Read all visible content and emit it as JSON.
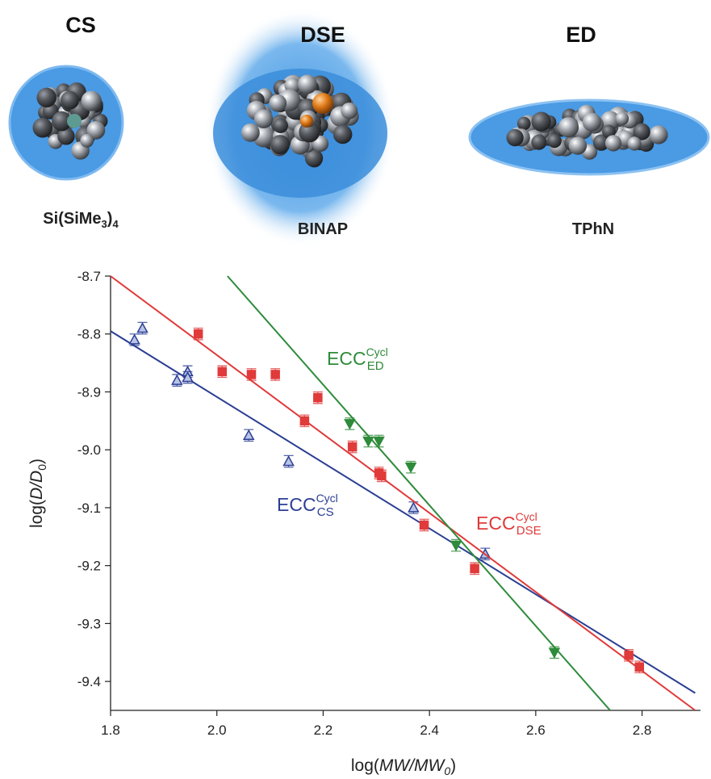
{
  "molecules": [
    {
      "title": "CS",
      "name_parts": [
        "Si(SiMe",
        "3",
        ")",
        "4"
      ]
    },
    {
      "title": "DSE",
      "name_parts": [
        "BINAP"
      ]
    },
    {
      "title": "ED",
      "name_parts": [
        "TPhN"
      ]
    }
  ],
  "chart_data": {
    "type": "scatter",
    "xlabel_parts": [
      "log(",
      "MW/MW",
      "0",
      ")"
    ],
    "ylabel_parts": [
      "log(",
      "D/D",
      "0",
      ")"
    ],
    "xlim": [
      1.8,
      2.91
    ],
    "ylim": [
      -9.45,
      -8.7
    ],
    "xticks": [
      1.8,
      {
        "value": 2,
        "label": "2.0"
      },
      2.2,
      2.4,
      2.6,
      2.8
    ],
    "yticks": [
      -8.7,
      -8.8,
      -8.9,
      {
        "value": -9,
        "label": "-9.0"
      },
      -9.1,
      -9.2,
      -9.3,
      -9.4
    ],
    "series": [
      {
        "name_parts": [
          "ECC",
          "Cycl",
          "CS"
        ],
        "color": "#2b3f93",
        "marker": "triangle-open",
        "x": [
          1.845,
          1.86,
          1.925,
          1.945,
          1.945,
          2.06,
          2.135,
          2.37,
          2.505
        ],
        "values": [
          -8.81,
          -8.79,
          -8.88,
          -8.865,
          -8.875,
          -8.975,
          -9.02,
          -9.1,
          -9.18
        ],
        "errors": [
          0.01,
          0.01,
          0.01,
          0.01,
          0.01,
          0.01,
          0.01,
          0.01,
          0.01
        ],
        "fit_x": [
          1.8,
          2.9
        ],
        "fit_y": [
          -8.795,
          -9.42
        ]
      },
      {
        "name_parts": [
          "ECC",
          "Cycl",
          "DSE"
        ],
        "color": "#e03a3a",
        "marker": "square",
        "x": [
          1.965,
          2.01,
          2.065,
          2.11,
          2.165,
          2.19,
          2.255,
          2.305,
          2.31,
          2.39,
          2.485,
          2.775,
          2.795
        ],
        "values": [
          -8.8,
          -8.865,
          -8.87,
          -8.87,
          -8.95,
          -8.91,
          -8.995,
          -9.04,
          -9.045,
          -9.13,
          -9.205,
          -9.355,
          -9.375
        ],
        "errors": [
          0.01,
          0.01,
          0.01,
          0.01,
          0.01,
          0.01,
          0.01,
          0.01,
          0.01,
          0.01,
          0.01,
          0.01,
          0.01
        ],
        "fit_x": [
          1.8,
          2.9
        ],
        "fit_y": [
          -8.7,
          -9.45
        ]
      },
      {
        "name_parts": [
          "ECC",
          "Cycl",
          "ED"
        ],
        "color": "#2e8b3a",
        "marker": "triangle-down",
        "x": [
          2.25,
          2.285,
          2.305,
          2.365,
          2.45,
          2.635
        ],
        "values": [
          -8.955,
          -8.985,
          -8.985,
          -9.03,
          -9.165,
          -9.35
        ],
        "errors": [
          0.01,
          0.01,
          0.01,
          0.01,
          0.01,
          0.01
        ],
        "fit_x": [
          2.02,
          2.74
        ],
        "fit_y": [
          -8.7,
          -9.45
        ]
      }
    ]
  }
}
